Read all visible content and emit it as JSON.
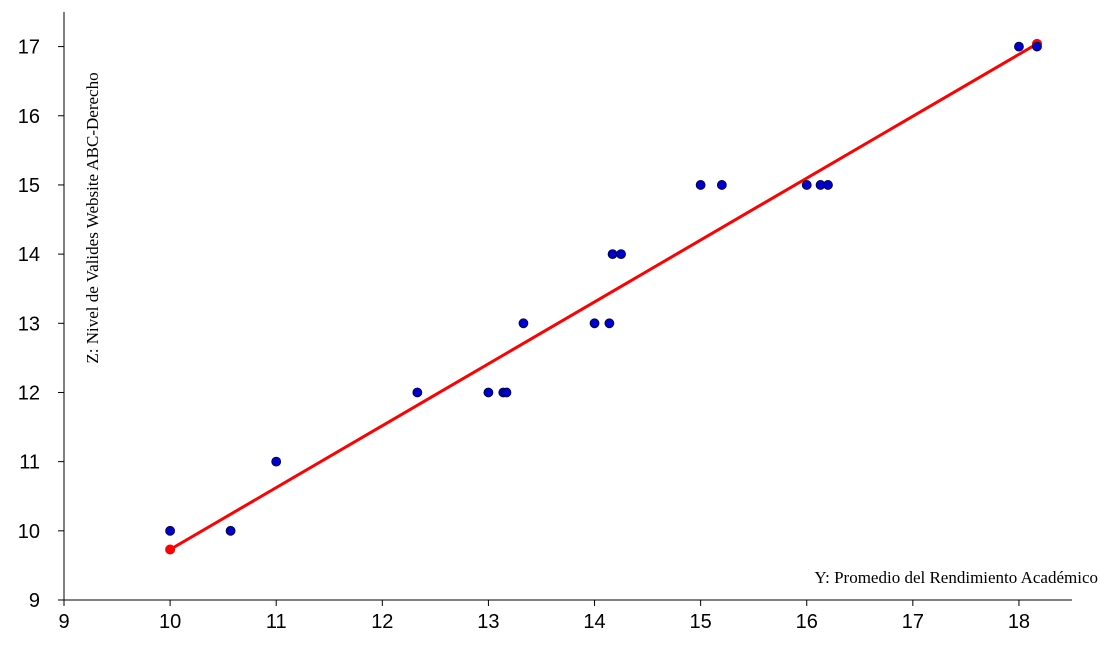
{
  "chart_data": {
    "type": "scatter",
    "xlabel": "Y:  Promedio del Rendimiento Académico",
    "ylabel": "Z:  Nivel de Valides Website ABC-Derecho",
    "xlim": [
      9,
      18.5
    ],
    "ylim": [
      9,
      17.5
    ],
    "xticks": [
      9,
      10,
      11,
      12,
      13,
      14,
      15,
      16,
      17,
      18
    ],
    "yticks": [
      9,
      10,
      11,
      12,
      13,
      14,
      15,
      16,
      17
    ],
    "grid": false,
    "legend": "none",
    "colors": {
      "points": "#0000cc",
      "point_outline": "#000033",
      "fit_line": "#ff0000",
      "fit_endpoints": "#ff0000"
    },
    "series": [
      {
        "type": "scatter",
        "x": [
          10.0,
          10.57,
          11.0,
          12.33,
          13.0,
          13.14,
          13.17,
          13.33,
          14.0,
          14.14,
          14.17,
          14.25,
          15.0,
          15.2,
          16.0,
          16.13,
          16.2,
          18.0,
          18.17
        ],
        "y": [
          10,
          10,
          11,
          12,
          12,
          12,
          12,
          13,
          13,
          13,
          14,
          14,
          15,
          15,
          15,
          15,
          15,
          17,
          17
        ]
      },
      {
        "type": "line",
        "x": [
          10.0,
          18.17
        ],
        "y": [
          9.73,
          17.04
        ]
      }
    ]
  }
}
